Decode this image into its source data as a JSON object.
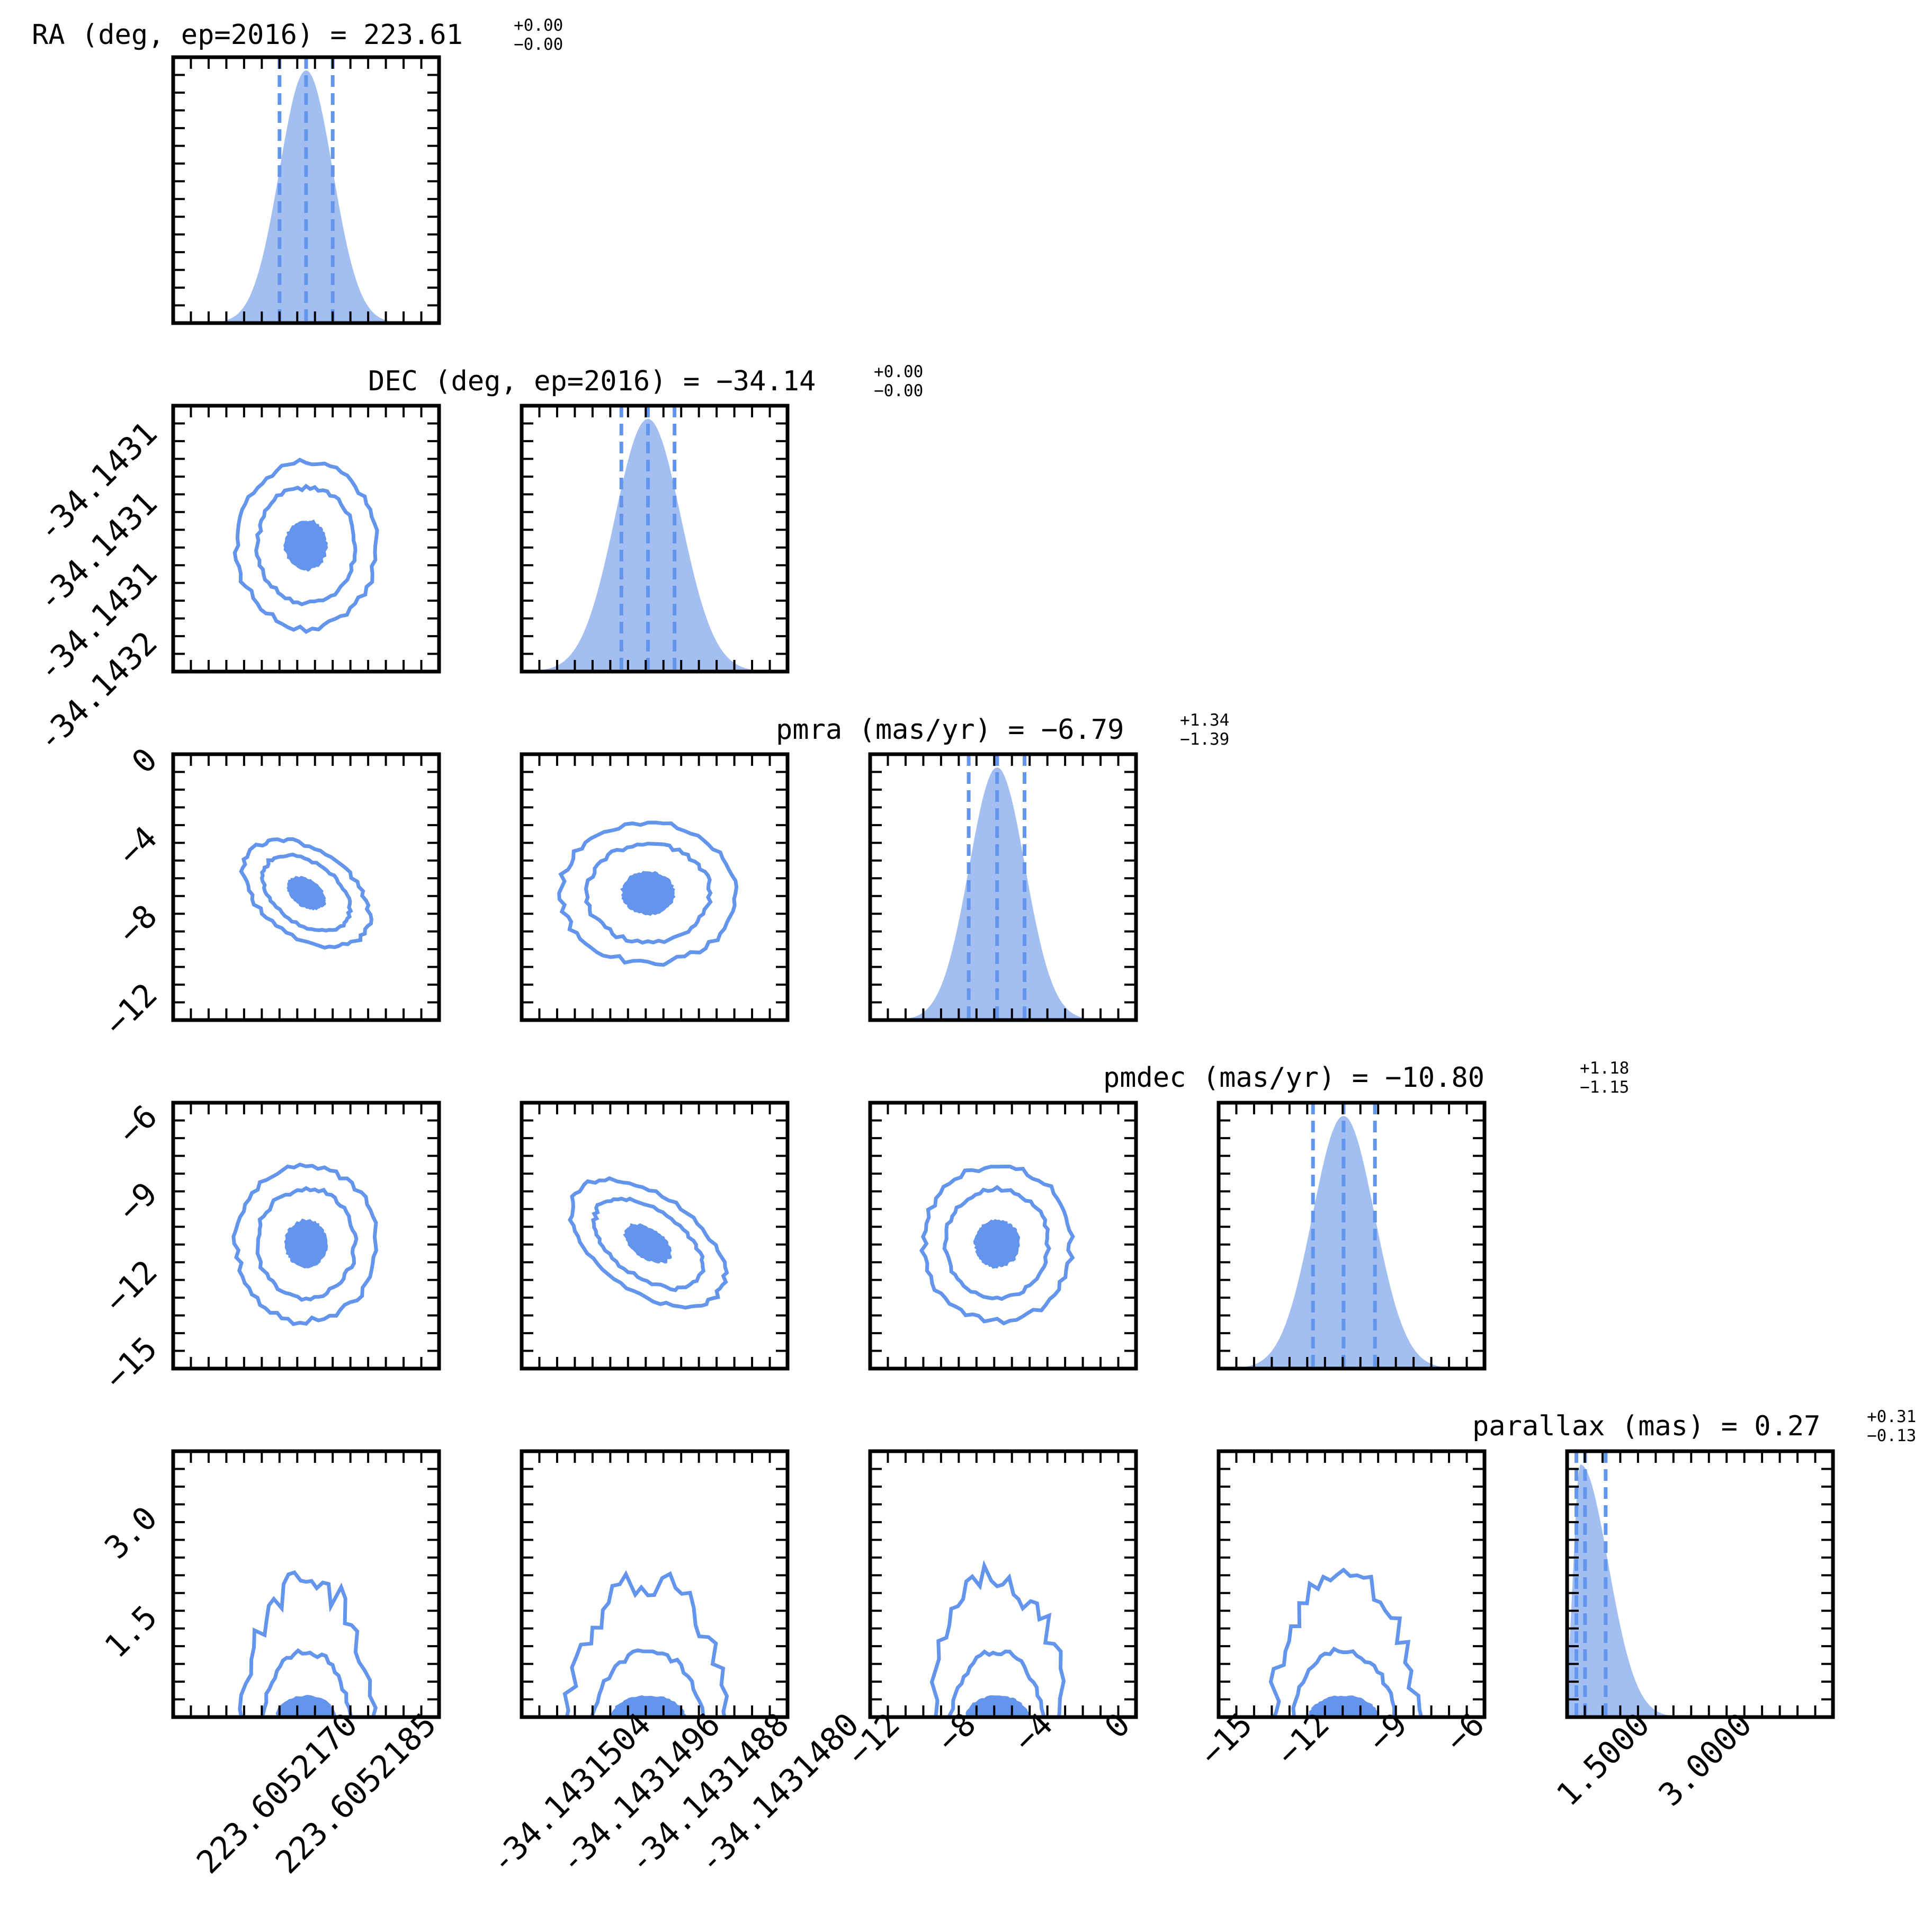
{
  "chart_data": {
    "type": "corner",
    "colors": {
      "accent": "#6495ed",
      "hist_fill": "#a3bff2",
      "axis": "#000000"
    },
    "parameters": [
      {
        "key": "ra",
        "title": "RA (deg, ep=2016) = 223.61",
        "sup": "+0.00",
        "sub": "−0.00",
        "range": [
          223.605214,
          223.605219
        ],
        "hist": {
          "mode": 223.6052165,
          "sigma": 5e-07
        },
        "quantiles": [
          223.605216,
          223.6052165,
          223.605217
        ],
        "tick_labels": [
          "223.6052170",
          "223.6052185"
        ]
      },
      {
        "key": "dec",
        "title": "DEC (deg, ep=2016) = −34.14",
        "sup": "+0.00",
        "sub": "−0.00",
        "range": [
          -34.1431515,
          -34.1431475
        ],
        "hist": {
          "mode": -34.1431496,
          "sigma": 5e-07
        },
        "quantiles": [
          -34.14315,
          -34.1431496,
          -34.1431492
        ],
        "tick_labels": [
          "-34.1431504",
          "-34.1431496",
          "-34.1431488",
          "-34.1431480"
        ],
        "y_tick_labels": [
          "-34.1431",
          "-34.1431",
          "-34.1431",
          "-34.1432"
        ]
      },
      {
        "key": "pmra",
        "title": "pmra (mas/yr) = −6.79",
        "sup": "+1.34",
        "sub": "−1.39",
        "range": [
          -13,
          0
        ],
        "hist": {
          "mode": -6.79,
          "sigma": 1.37
        },
        "quantiles": [
          -8.18,
          -6.79,
          -5.45
        ],
        "tick_labels": [
          "−12",
          "−8",
          "−4",
          "0"
        ],
        "y_tick_labels": [
          "0",
          "−4",
          "−8",
          "−12"
        ]
      },
      {
        "key": "pmdec",
        "title": "pmdec (mas/yr) = −10.80",
        "sup": "+1.18",
        "sub": "−1.15",
        "range": [
          -15.5,
          -5.5
        ],
        "hist": {
          "mode": -10.8,
          "sigma": 1.17
        },
        "quantiles": [
          -11.95,
          -10.8,
          -9.62
        ],
        "tick_labels": [
          "−15",
          "−12",
          "−9",
          "−6"
        ],
        "y_tick_labels": [
          "−6",
          "−9",
          "−12",
          "−15"
        ]
      },
      {
        "key": "parallax",
        "title": "parallax (mas) = 0.27",
        "sup": "+0.31",
        "sub": "−0.13",
        "range": [
          0,
          4
        ],
        "hist": {
          "mode": 0.2,
          "sigma": 0.3
        },
        "quantiles": [
          0.14,
          0.27,
          0.58
        ],
        "tick_labels": [
          "1.5000",
          "3.0000"
        ],
        "y_tick_labels": [
          "3.0",
          "1.5"
        ]
      }
    ]
  }
}
